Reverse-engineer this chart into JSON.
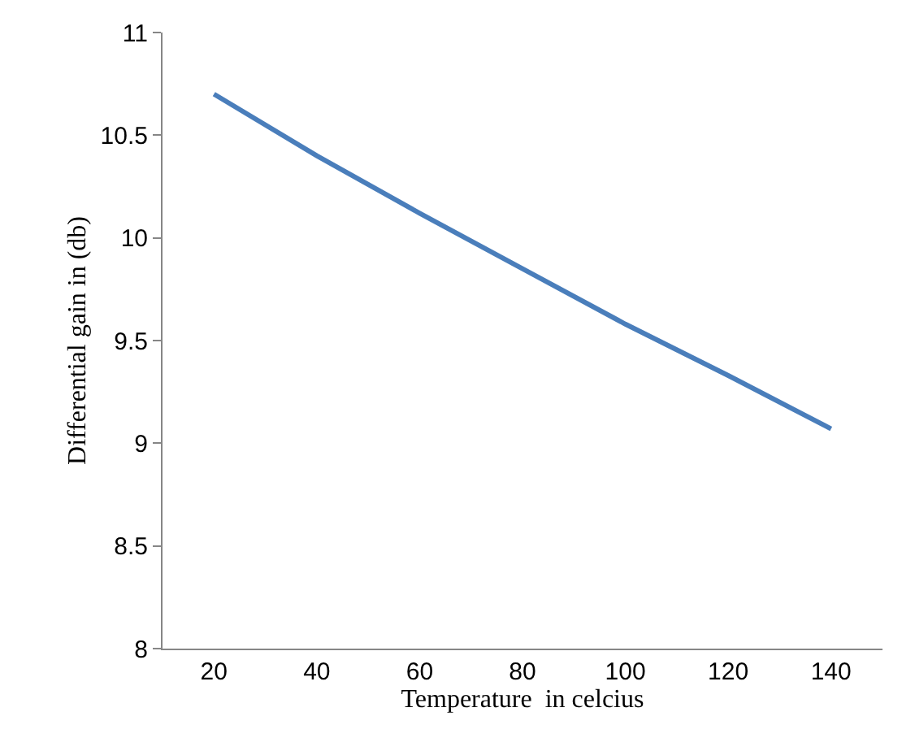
{
  "chart_data": {
    "type": "line",
    "xlabel": "Temperature  in celcius",
    "ylabel": "Differential gain in (db)",
    "categories": [
      "20",
      "40",
      "60",
      "80",
      "100",
      "120",
      "140"
    ],
    "series": [
      {
        "color": "#4a7ebb",
        "values": [
          10.7,
          10.4,
          10.12,
          9.85,
          9.58,
          9.33,
          9.07
        ]
      }
    ],
    "ylim": [
      8,
      11
    ],
    "yticks": [
      8,
      8.5,
      9,
      9.5,
      10,
      10.5,
      11
    ],
    "marker": "none",
    "line_style": "solid"
  }
}
